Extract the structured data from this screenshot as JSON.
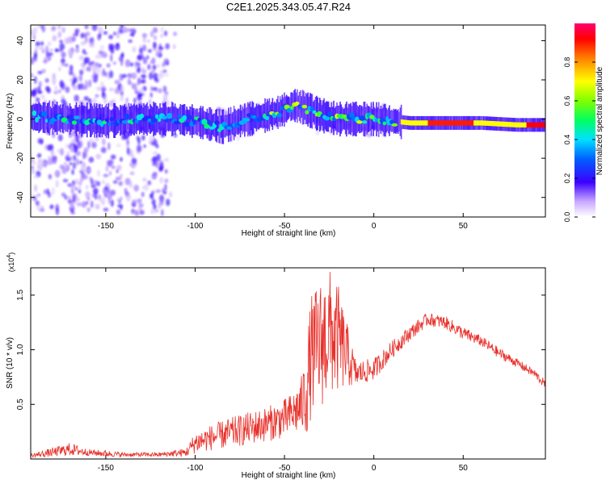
{
  "figure_title": "C2E1.2025.343.05.47.R24",
  "colors": {
    "signal": "#e8302a",
    "frame": "#000000"
  },
  "chart_data": [
    {
      "type": "heatmap",
      "name": "spectrogram",
      "xlabel": "Height of straight line (km)",
      "ylabel": "Frequency (Hz)",
      "xlim": [
        -192,
        96
      ],
      "ylim": [
        -50,
        48
      ],
      "xticks": [
        -150,
        -100,
        -50,
        0,
        50
      ],
      "xtick_labels": [
        "-150",
        "-100",
        "-50",
        "0",
        "50"
      ],
      "yticks": [
        -40,
        -20,
        0,
        20,
        40
      ],
      "ytick_labels": [
        "-40",
        "-20",
        "0",
        "20",
        "40"
      ],
      "ridge": {
        "x": [
          -190,
          -170,
          -150,
          -130,
          -110,
          -95,
          -85,
          -75,
          -65,
          -55,
          -50,
          -45,
          -40,
          -35,
          -30,
          -20,
          -10,
          0,
          10,
          20,
          40,
          60,
          80,
          95
        ],
        "y": [
          1,
          0,
          -1,
          0,
          0,
          -2,
          -4,
          -1,
          1,
          3,
          5,
          7,
          6,
          4,
          2,
          0,
          0,
          0,
          -1,
          -2,
          -2,
          -2,
          -3,
          -3
        ]
      },
      "colorbar": {
        "label": "Normalized spectral amplitude",
        "range": [
          0,
          1
        ],
        "ticks": [
          0.0,
          0.2,
          0.4,
          0.6,
          0.8
        ],
        "tick_labels": [
          "0.0",
          "0.2",
          "0.4",
          "0.6",
          "0.8"
        ]
      }
    },
    {
      "type": "line",
      "name": "snr",
      "xlabel": "Height of straight line (km)",
      "ylabel": "SNR (10 * v/v)",
      "y_multiplier_label": "(x10",
      "y_multiplier_exp": "4",
      "y_multiplier_close": ")",
      "xlim": [
        -192,
        96
      ],
      "ylim": [
        0,
        1.75
      ],
      "xticks": [
        -150,
        -100,
        -50,
        0,
        50
      ],
      "xtick_labels": [
        "-150",
        "-100",
        "-50",
        "0",
        "50"
      ],
      "yticks": [
        0.5,
        1.0,
        1.5
      ],
      "ytick_labels": [
        "0.5",
        "1.0",
        "1.5"
      ],
      "series": [
        {
          "name": "SNR",
          "color": "#e8302a",
          "x": [
            -192,
            -180,
            -170,
            -160,
            -150,
            -140,
            -120,
            -105,
            -100,
            -90,
            -80,
            -70,
            -60,
            -50,
            -45,
            -40,
            -37,
            -35,
            -30,
            -25,
            -20,
            -15,
            -10,
            0,
            10,
            20,
            30,
            40,
            50,
            60,
            70,
            80,
            90,
            96
          ],
          "y": [
            0.03,
            0.06,
            0.09,
            0.06,
            0.05,
            0.04,
            0.04,
            0.06,
            0.15,
            0.2,
            0.24,
            0.28,
            0.32,
            0.37,
            0.42,
            0.5,
            0.7,
            0.95,
            1.05,
            1.15,
            1.1,
            0.95,
            0.78,
            0.82,
            1.0,
            1.15,
            1.28,
            1.25,
            1.15,
            1.08,
            0.97,
            0.88,
            0.78,
            0.68
          ],
          "noise": [
            0.02,
            0.04,
            0.06,
            0.03,
            0.03,
            0.02,
            0.02,
            0.04,
            0.1,
            0.12,
            0.14,
            0.15,
            0.16,
            0.18,
            0.2,
            0.28,
            0.5,
            0.55,
            0.6,
            0.6,
            0.5,
            0.3,
            0.12,
            0.1,
            0.08,
            0.07,
            0.06,
            0.06,
            0.06,
            0.05,
            0.05,
            0.04,
            0.04,
            0.04
          ]
        }
      ]
    }
  ]
}
